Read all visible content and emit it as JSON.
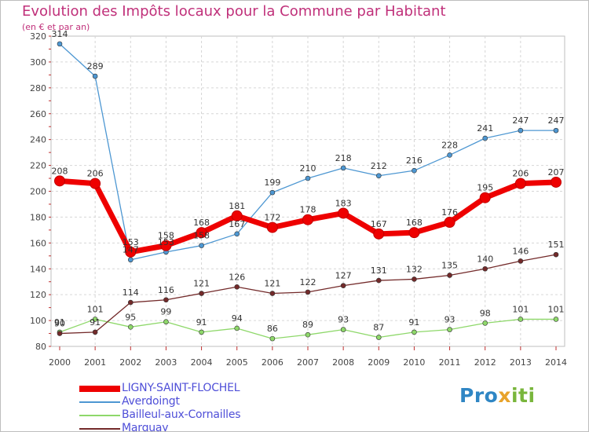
{
  "title": "Evolution des Impôts locaux pour la Commune par Habitant",
  "subtitle": "(en € et par an)",
  "logo": {
    "p1": "Pro",
    "p2": "x",
    "p3": "iti"
  },
  "chart_data": {
    "type": "line",
    "x": [
      2000,
      2001,
      2002,
      2003,
      2004,
      2005,
      2006,
      2007,
      2008,
      2009,
      2010,
      2011,
      2012,
      2013,
      2014
    ],
    "ylim": [
      80,
      320
    ],
    "yticks": [
      80,
      100,
      120,
      140,
      160,
      180,
      200,
      220,
      240,
      260,
      280,
      300,
      320
    ],
    "grid": true,
    "legend_position": "bottom-left",
    "series": [
      {
        "name": "LIGNY-SAINT-FLOCHEL",
        "color": "#ee0000",
        "values": [
          208,
          206,
          153,
          158,
          168,
          181,
          172,
          178,
          183,
          167,
          168,
          176,
          195,
          206,
          207
        ]
      },
      {
        "name": "Averdoingt",
        "color": "#4d97d2",
        "values": [
          314,
          289,
          147,
          153,
          158,
          167,
          199,
          210,
          218,
          212,
          216,
          228,
          241,
          247,
          247
        ]
      },
      {
        "name": "Bailleul-aux-Cornailles",
        "color": "#8ed86a",
        "values": [
          91,
          101,
          95,
          99,
          91,
          94,
          86,
          89,
          93,
          87,
          91,
          93,
          98,
          101,
          101
        ]
      },
      {
        "name": "Marquay",
        "color": "#732a2a",
        "values": [
          90,
          91,
          114,
          116,
          121,
          126,
          121,
          122,
          127,
          131,
          132,
          135,
          140,
          146,
          151
        ]
      }
    ]
  }
}
